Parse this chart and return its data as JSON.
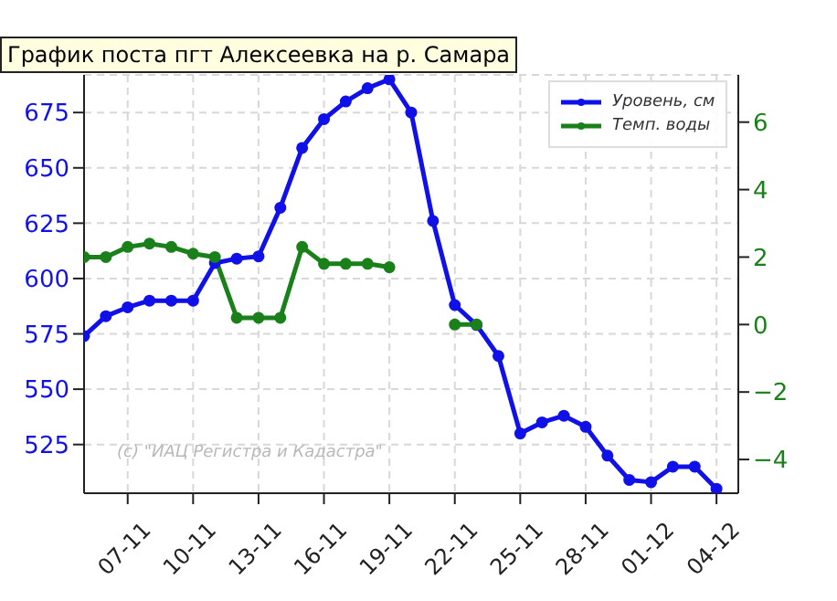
{
  "chart_data": {
    "type": "line",
    "title": "График поста пгт Алексеевка на р. Самара",
    "x": [
      "--11-05",
      "--11-06",
      "--11-07",
      "--11-08",
      "--11-09",
      "--11-10",
      "--11-11",
      "--11-12",
      "--11-13",
      "--11-14",
      "--11-15",
      "--11-16",
      "--11-17",
      "--11-18",
      "--11-19",
      "--11-20",
      "--11-21",
      "--11-22",
      "--11-23",
      "--11-24",
      "--11-25",
      "--11-26",
      "--11-27",
      "--11-28",
      "--11-29",
      "--11-30",
      "--12-01",
      "--12-02",
      "--12-03",
      "--12-04"
    ],
    "series": [
      {
        "name": "Уровень, см",
        "color": "#1010e8",
        "values": [
          574,
          583,
          587,
          590,
          590,
          590,
          607,
          609,
          610,
          632,
          659,
          672,
          680,
          686,
          690,
          675,
          626,
          588,
          579,
          565,
          530,
          535,
          538,
          533,
          520,
          509,
          508,
          515,
          515,
          505
        ]
      },
      {
        "name": "Темп. воды",
        "color": "#1a801a",
        "axis": "y2",
        "values": [
          2.0,
          2.0,
          2.3,
          2.4,
          2.3,
          2.1,
          2.0,
          0.2,
          0.2,
          0.2,
          2.3,
          1.8,
          1.8,
          1.8,
          1.7,
          null,
          null,
          0,
          0,
          null,
          null,
          null,
          null,
          null,
          null,
          null,
          null,
          null,
          null,
          null
        ]
      }
    ],
    "xlim": [
      "--11-05",
      "--12-05"
    ],
    "xticks": [
      {
        "value": "--11-07",
        "label": "07-11"
      },
      {
        "value": "--11-10",
        "label": "10-11"
      },
      {
        "value": "--11-13",
        "label": "13-11"
      },
      {
        "value": "--11-16",
        "label": "16-11"
      },
      {
        "value": "--11-19",
        "label": "19-11"
      },
      {
        "value": "--11-22",
        "label": "22-11"
      },
      {
        "value": "--11-25",
        "label": "25-11"
      },
      {
        "value": "--11-28",
        "label": "28-11"
      },
      {
        "value": "--12-01",
        "label": "01-12"
      },
      {
        "value": "--12-04",
        "label": "04-12"
      }
    ],
    "ylim": [
      503,
      692
    ],
    "yticks": [
      525,
      550,
      575,
      600,
      625,
      650,
      675
    ],
    "y2lim": [
      -5,
      7.4
    ],
    "y2ticks": [
      {
        "value": -4,
        "label": "−4"
      },
      {
        "value": -2,
        "label": "−2"
      },
      0,
      2,
      4,
      6
    ],
    "annotations": [
      "(c) \"ИАЦ Регистра и Кадастра\""
    ],
    "grid": true,
    "legend": "top right",
    "marker": "circle",
    "line_style": "solid"
  }
}
